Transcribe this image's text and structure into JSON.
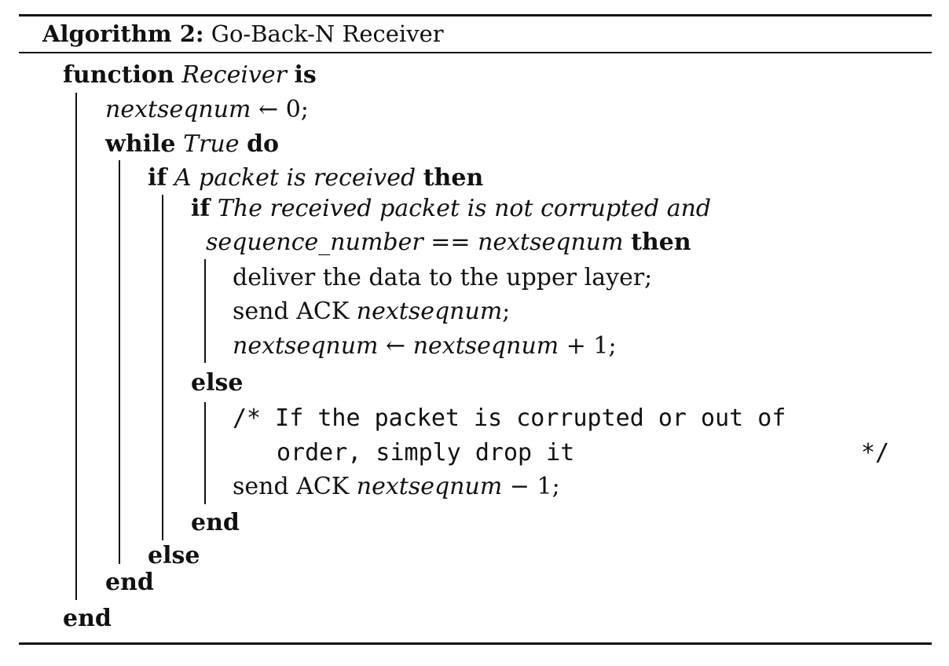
{
  "caption": {
    "label": "Algorithm 2:",
    "title": "Go-Back-N Receiver"
  },
  "lines": {
    "l1": {
      "kw1": "function",
      "name": "Receiver",
      "kw2": "is"
    },
    "l2": {
      "var": "nextseqnum",
      "rest": " ← 0;"
    },
    "l3": {
      "kw1": "while",
      "cond": "True",
      "kw2": "do"
    },
    "l4": {
      "kw1": "if",
      "cond": "A packet is received",
      "kw2": "then"
    },
    "l5": {
      "kw1": "if",
      "cond": "The received packet is not corrupted and"
    },
    "l6": {
      "cond": "sequence_number",
      "op": " == ",
      "var": "nextseqnum",
      "kw2": "then"
    },
    "l7": {
      "text": "deliver the data to the upper layer;"
    },
    "l8": {
      "text": "send ACK ",
      "var": "nextseqnum",
      "tail": ";"
    },
    "l9": {
      "var1": "nextseqnum",
      "op": " ← ",
      "var2": "nextseqnum",
      "tail": " + 1;"
    },
    "l10": {
      "kw": "else"
    },
    "l11": {
      "comment_open": "/* If the packet is corrupted or out of"
    },
    "l12": {
      "comment_cont": "order, simply drop it",
      "comment_close": "*/"
    },
    "l13": {
      "text": "send ACK ",
      "var": "nextseqnum",
      "tail": " − 1;"
    },
    "l14": {
      "kw": "end"
    },
    "l15": {
      "kw": "else"
    },
    "l16": {
      "kw": "end"
    },
    "l17": {
      "kw": "end"
    }
  }
}
